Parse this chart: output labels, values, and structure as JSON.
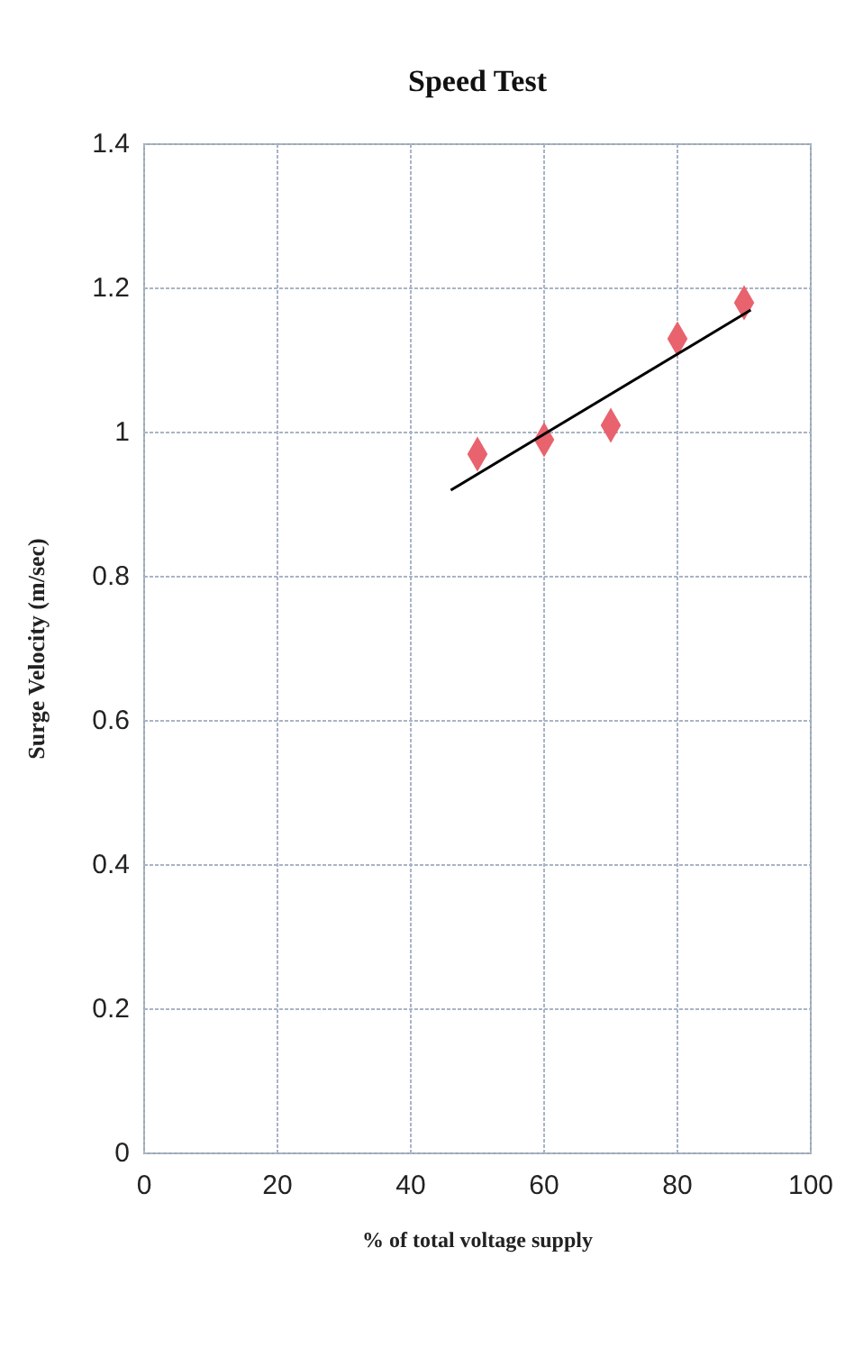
{
  "chart_data": {
    "type": "scatter",
    "title": "Speed Test",
    "xlabel": "% of total voltage supply",
    "ylabel": "Surge Velocity (m/sec)",
    "xlim": [
      0,
      100
    ],
    "xticks": [
      0,
      20,
      40,
      60,
      80,
      100
    ],
    "ylim": [
      0,
      1.4
    ],
    "yticks": [
      0,
      0.2,
      0.4,
      0.6,
      0.8,
      1,
      1.2,
      1.4
    ],
    "grid": true,
    "series": [
      {
        "type": "scatter",
        "color": "#e8636e",
        "marker": "diamond",
        "x": [
          50,
          60,
          70,
          80,
          90
        ],
        "values": [
          0.97,
          0.99,
          1.01,
          1.13,
          1.18
        ]
      },
      {
        "type": "line",
        "color": "#000000",
        "line_style": "solid",
        "marker": "none",
        "x": [
          46,
          91
        ],
        "values": [
          0.92,
          1.17
        ]
      }
    ]
  }
}
